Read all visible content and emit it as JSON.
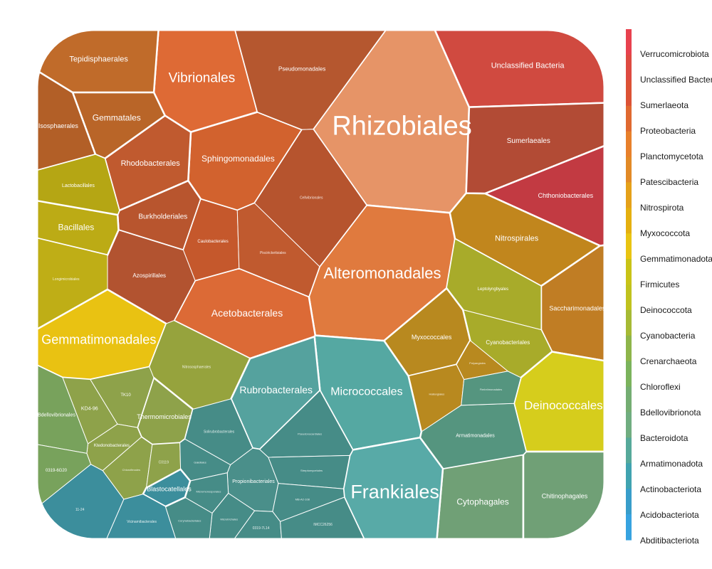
{
  "chart_data": {
    "type": "voronoi-treemap",
    "phyla": [
      {
        "name": "Verrucomicrobiota",
        "color": "#e8414e"
      },
      {
        "name": "Unclassified Bacteria",
        "color": "#de4a41"
      },
      {
        "name": "Sumerlaeota",
        "color": "#dc5235"
      },
      {
        "name": "Proteobacteria",
        "color": "#e06930"
      },
      {
        "name": "Planctomycetota",
        "color": "#e8802b"
      },
      {
        "name": "Patescibacteria",
        "color": "#e28a26"
      },
      {
        "name": "Nitrospirota",
        "color": "#e5a119"
      },
      {
        "name": "Myxococcota",
        "color": "#e5b00f"
      },
      {
        "name": "Gemmatimonadota",
        "color": "#e9c412"
      },
      {
        "name": "Firmicutes",
        "color": "#c9c317"
      },
      {
        "name": "Deinococcota",
        "color": "#c0c21e"
      },
      {
        "name": "Cyanobacteria",
        "color": "#a6ba34"
      },
      {
        "name": "Crenarchaeota",
        "color": "#8eb54a"
      },
      {
        "name": "Chloroflexi",
        "color": "#7bb35c"
      },
      {
        "name": "Bdellovibrionota",
        "color": "#74ad72"
      },
      {
        "name": "Bacteroidota",
        "color": "#70ad80"
      },
      {
        "name": "Armatimonadota",
        "color": "#56a99a"
      },
      {
        "name": "Actinobacteriota",
        "color": "#40a3b0"
      },
      {
        "name": "Acidobacteriota",
        "color": "#389dca"
      },
      {
        "name": "Abditibacteriota",
        "color": "#37a3e0"
      }
    ],
    "cells": [
      {
        "label": "Rhizobiales",
        "color": "#e69467",
        "font": 38
      },
      {
        "label": "Alteromonadales",
        "color": "#e07a3e",
        "font": 22
      },
      {
        "label": "Vibrionales",
        "color": "#de6a35",
        "font": 19
      },
      {
        "label": "Sphingomonadales",
        "color": "#d2622e",
        "font": 12
      },
      {
        "label": "Acetobacterales",
        "color": "#dc6a36",
        "font": 14
      },
      {
        "label": "Rhodobacterales",
        "color": "#c05a2f",
        "font": 11
      },
      {
        "label": "Burkholderiales",
        "color": "#b8552e",
        "font": 10
      },
      {
        "label": "Azospirillales",
        "color": "#b25330",
        "font": 8
      },
      {
        "label": "Caulobacterales",
        "color": "#c5582c",
        "font": 6
      },
      {
        "label": "Pseudomonadales",
        "color": "#b5572f",
        "font": 8
      },
      {
        "label": "Cellvibrionales",
        "color": "#b6542e",
        "font": 5
      },
      {
        "label": "Piscirickettsiales",
        "color": "#c05a2f",
        "font": 5
      },
      {
        "label": "Unclassified Bacteria",
        "color": "#d04a40",
        "font": 11
      },
      {
        "label": "Sumerlaeales",
        "color": "#b24b35",
        "font": 10
      },
      {
        "label": "Chthoniobacterales",
        "color": "#c23a42",
        "font": 9
      },
      {
        "label": "Tepidisphaerales",
        "color": "#c06b2a",
        "font": 11
      },
      {
        "label": "Gemmatales",
        "color": "#b96528",
        "font": 12
      },
      {
        "label": "Isosphaerales",
        "color": "#b25f27",
        "font": 9
      },
      {
        "label": "Lactobacillales",
        "color": "#b5a614",
        "font": 7
      },
      {
        "label": "Bacillales",
        "color": "#bcab15",
        "font": 12
      },
      {
        "label": "Longimicrobiales",
        "color": "#bfae16",
        "font": 5
      },
      {
        "label": "Gemmatimonadales",
        "color": "#e9c212",
        "font": 18
      },
      {
        "label": "Nitrospirales",
        "color": "#c1861d",
        "font": 11
      },
      {
        "label": "Saccharimonadales",
        "color": "#c07d24",
        "font": 9
      },
      {
        "label": "Leptolyngbyales",
        "color": "#a8ab2a",
        "font": 6
      },
      {
        "label": "Cyanobacteriales",
        "color": "#a8ab2a",
        "font": 8
      },
      {
        "label": "Myxococcales",
        "color": "#b8891f",
        "font": 9
      },
      {
        "label": "Polyangiales",
        "color": "#b8891f",
        "font": 4
      },
      {
        "label": "Haliangiales",
        "color": "#b8891f",
        "font": 4
      },
      {
        "label": "Deinococcales",
        "color": "#d6cd1c",
        "font": 17
      },
      {
        "label": "Nitrososphaerales",
        "color": "#96a33d",
        "font": 5
      },
      {
        "label": "Thermomicrobiales",
        "color": "#8ea24a",
        "font": 9
      },
      {
        "label": "KD4-96",
        "color": "#8ea24a",
        "font": 7
      },
      {
        "label": "TK10",
        "color": "#8ea24a",
        "font": 6
      },
      {
        "label": "Ktedonobacterales",
        "color": "#8ea24a",
        "font": 6
      },
      {
        "label": "Chloroflexales",
        "color": "#8ea24a",
        "font": 4
      },
      {
        "label": "C0119",
        "color": "#8ea24a",
        "font": 5
      },
      {
        "label": "Bdellovibrionales",
        "color": "#78a25c",
        "font": 7
      },
      {
        "label": "0319-6G20",
        "color": "#78a25c",
        "font": 6
      },
      {
        "label": "Cytophagales",
        "color": "#70a076",
        "font": 12
      },
      {
        "label": "Chitinophagales",
        "color": "#70a076",
        "font": 9
      },
      {
        "label": "Armatimonadales",
        "color": "#55957f",
        "font": 7
      },
      {
        "label": "Fimbriimonadales",
        "color": "#55957f",
        "font": 4
      },
      {
        "label": "Micrococcales",
        "color": "#55a8a2",
        "font": 16
      },
      {
        "label": "Frankiales",
        "color": "#58aaa7",
        "font": 27
      },
      {
        "label": "Rubrobacterales",
        "color": "#55a29e",
        "font": 14
      },
      {
        "label": "Propionibacteriales",
        "color": "#4a8f8a",
        "font": 7
      },
      {
        "label": "Solirubrobacterales",
        "color": "#468c87",
        "font": 5
      },
      {
        "label": "Gaiellales",
        "color": "#468c87",
        "font": 4
      },
      {
        "label": "Pseudonocardiales",
        "color": "#468c87",
        "font": 4
      },
      {
        "label": "Streptomycetales",
        "color": "#468c87",
        "font": 4
      },
      {
        "label": "Micromonosporales",
        "color": "#468c87",
        "font": 4
      },
      {
        "label": "MB-A2-108",
        "color": "#468c87",
        "font": 4
      },
      {
        "label": "Microtrichales",
        "color": "#468c87",
        "font": 4
      },
      {
        "label": "0319-7L14",
        "color": "#468c87",
        "font": 5
      },
      {
        "label": "IMCC26256",
        "color": "#468c87",
        "font": 5
      },
      {
        "label": "Corynebacteriales",
        "color": "#468c87",
        "font": 4
      },
      {
        "label": "Blastocatellales",
        "color": "#3c8e9c",
        "font": 9
      },
      {
        "label": "Vicinamibacterales",
        "color": "#3c8e9c",
        "font": 5
      },
      {
        "label": "11-24",
        "color": "#3c8e9c",
        "font": 5
      },
      {
        "label": "Abditibacteriales",
        "color": "#3694c5",
        "font": 11
      }
    ]
  }
}
